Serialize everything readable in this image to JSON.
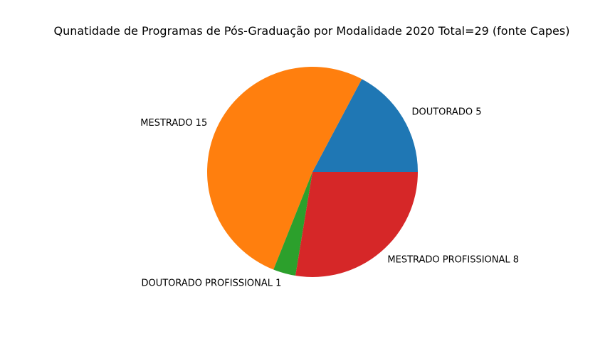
{
  "chart_data": {
    "type": "pie",
    "title": "Qunatidade de Programas de Pós-Graduação por Modalidade 2020 Total=29 (fonte Capes)",
    "slices": [
      {
        "label": "DOUTORADO 5",
        "value": 5,
        "color": "#1f77b4"
      },
      {
        "label": "MESTRADO 15",
        "value": 15,
        "color": "#ff7f0e"
      },
      {
        "label": "DOUTORADO PROFISSIONAL 1",
        "value": 1,
        "color": "#2ca02c"
      },
      {
        "label": "MESTRADO PROFISSIONAL 8",
        "value": 8,
        "color": "#d62728"
      }
    ],
    "start_angle_deg": 0,
    "direction": "counterclockwise",
    "legend": "none"
  }
}
